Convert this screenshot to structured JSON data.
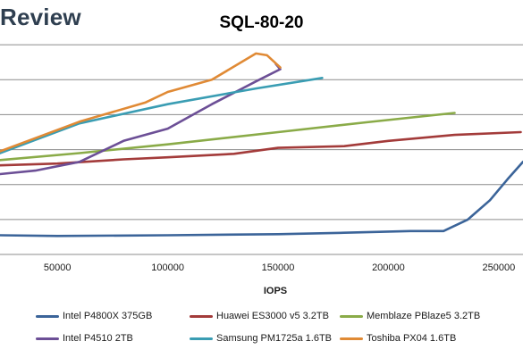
{
  "brand": {
    "text": "Review"
  },
  "chart_data": {
    "type": "line",
    "title": "SQL-80-20",
    "xlabel": "IOPS",
    "ylabel": "",
    "xlim": [
      24000,
      261000
    ],
    "ylim": [
      0,
      7
    ],
    "x_ticks": [
      50000,
      100000,
      150000,
      200000,
      250000
    ],
    "x_tick_labels": [
      "50000",
      "100000",
      "150000",
      "200000",
      "250000"
    ],
    "y_gridlines": [
      1,
      2,
      3,
      4,
      5,
      6
    ],
    "grid": true,
    "legend_position": "bottom",
    "series": [
      {
        "name": "Intel P4800X 375GB",
        "color": "#3b6499",
        "points": [
          [
            24000,
            0.55
          ],
          [
            50000,
            0.53
          ],
          [
            100000,
            0.55
          ],
          [
            150000,
            0.58
          ],
          [
            180000,
            0.62
          ],
          [
            210000,
            0.67
          ],
          [
            225000,
            0.67
          ],
          [
            236000,
            1.0
          ],
          [
            246000,
            1.55
          ],
          [
            254000,
            2.15
          ],
          [
            261000,
            2.65
          ]
        ]
      },
      {
        "name": "Huawei ES3000 v5 3.2TB",
        "color": "#a33b3a",
        "points": [
          [
            24000,
            2.55
          ],
          [
            50000,
            2.6
          ],
          [
            80000,
            2.72
          ],
          [
            100000,
            2.78
          ],
          [
            130000,
            2.88
          ],
          [
            150000,
            3.05
          ],
          [
            180000,
            3.1
          ],
          [
            200000,
            3.25
          ],
          [
            230000,
            3.42
          ],
          [
            260000,
            3.5
          ]
        ]
      },
      {
        "name": "Memblaze PBlaze5 3.2TB",
        "color": "#8aab48",
        "points": [
          [
            24000,
            2.7
          ],
          [
            60000,
            2.9
          ],
          [
            100000,
            3.15
          ],
          [
            150000,
            3.5
          ],
          [
            190000,
            3.78
          ],
          [
            230000,
            4.05
          ]
        ]
      },
      {
        "name": "Intel P4510 2TB",
        "color": "#6c4f96",
        "points": [
          [
            24000,
            2.3
          ],
          [
            40000,
            2.4
          ],
          [
            60000,
            2.65
          ],
          [
            80000,
            3.25
          ],
          [
            100000,
            3.6
          ],
          [
            120000,
            4.3
          ],
          [
            140000,
            4.95
          ],
          [
            151000,
            5.3
          ],
          [
            149000,
            5.45
          ]
        ]
      },
      {
        "name": "Samsung PM1725a 1.6TB",
        "color": "#3a9db3",
        "points": [
          [
            24000,
            2.9
          ],
          [
            60000,
            3.75
          ],
          [
            100000,
            4.3
          ],
          [
            140000,
            4.75
          ],
          [
            170000,
            5.05
          ]
        ]
      },
      {
        "name": "Toshiba PX04 1.6TB",
        "color": "#e08a35",
        "points": [
          [
            24000,
            2.95
          ],
          [
            60000,
            3.8
          ],
          [
            90000,
            4.35
          ],
          [
            100000,
            4.65
          ],
          [
            120000,
            5.0
          ],
          [
            140000,
            5.75
          ],
          [
            145000,
            5.7
          ],
          [
            151000,
            5.35
          ]
        ]
      }
    ]
  }
}
